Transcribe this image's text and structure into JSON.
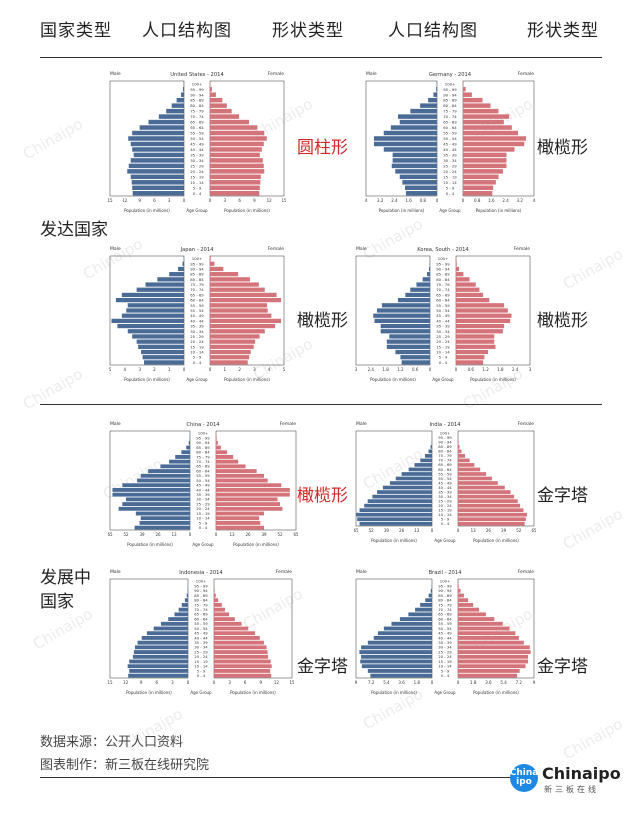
{
  "header": {
    "col1": "国家类型",
    "col2": "人口结构图",
    "col3": "形状类型",
    "col4": "人口结构图",
    "col5": "形状类型"
  },
  "groups": {
    "developed": "发达国家",
    "developing_line1": "发展中",
    "developing_line2": "国家"
  },
  "shapes": {
    "us": "圆柱形",
    "germany": "橄榄形",
    "japan": "橄榄形",
    "korea": "橄榄形",
    "china": "橄榄形",
    "india": "金字塔",
    "indonesia": "金字塔",
    "brazil": "金字塔"
  },
  "colors": {
    "male": "#4a6b96",
    "female": "#d4737a",
    "highlight": "#d42626",
    "logo": "#1e88e5"
  },
  "footer": {
    "source": "数据来源：公开人口资料",
    "maker": "图表制作：新三板在线研究院"
  },
  "logo": {
    "mark": "China ipo",
    "word": "Chinaipo",
    "sub": "新三板在线"
  },
  "chart_data": [
    {
      "type": "bar",
      "id": "us",
      "title": "United States - 2014",
      "left_label": "Male",
      "right_label": "Female",
      "center_label": "Age Group",
      "xlabel_left": "Population (in millions)",
      "xlabel_right": "Population (in millions)",
      "categories": [
        "0 - 4",
        "5 - 9",
        "10 - 14",
        "15 - 19",
        "20 - 24",
        "25 - 29",
        "30 - 34",
        "35 - 39",
        "40 - 44",
        "45 - 49",
        "50 - 54",
        "55 - 59",
        "60 - 64",
        "65 - 69",
        "70 - 74",
        "75 - 79",
        "80 - 84",
        "85 - 89",
        "90 - 94",
        "95 - 99",
        "100+"
      ],
      "male": [
        10.4,
        10.5,
        10.6,
        10.8,
        11.5,
        11.2,
        10.8,
        10.2,
        10.5,
        10.8,
        11.3,
        10.5,
        9.0,
        7.2,
        5.1,
        3.6,
        2.5,
        1.5,
        0.6,
        0.2,
        0.05
      ],
      "female": [
        10.0,
        10.1,
        10.2,
        10.3,
        11.0,
        10.9,
        10.7,
        10.1,
        10.5,
        10.9,
        11.5,
        11.0,
        9.6,
        7.9,
        5.9,
        4.4,
        3.4,
        2.5,
        1.2,
        0.4,
        0.1
      ],
      "ticks": [
        "15",
        "12",
        "9",
        "6",
        "3",
        "0",
        "0",
        "3",
        "6",
        "9",
        "12",
        "15"
      ],
      "xlim": 15
    },
    {
      "type": "bar",
      "id": "germany",
      "title": "Germany - 2014",
      "left_label": "Male",
      "right_label": "Female",
      "center_label": "Age Group",
      "xlabel_left": "Population (in millions)",
      "xlabel_right": "Population (in millions)",
      "categories": [
        "0 - 4",
        "5 - 9",
        "10 - 14",
        "15 - 19",
        "20 - 24",
        "25 - 29",
        "30 - 34",
        "35 - 39",
        "40 - 44",
        "45 - 49",
        "50 - 54",
        "55 - 59",
        "60 - 64",
        "65 - 69",
        "70 - 74",
        "75 - 79",
        "80 - 84",
        "85 - 89",
        "90 - 94",
        "95 - 99",
        "100+"
      ],
      "male": [
        1.75,
        1.8,
        1.95,
        2.1,
        2.35,
        2.55,
        2.5,
        2.5,
        3.0,
        3.55,
        3.55,
        3.0,
        2.6,
        2.1,
        2.2,
        1.5,
        0.95,
        0.5,
        0.2,
        0.05,
        0.01
      ],
      "female": [
        1.65,
        1.7,
        1.85,
        2.0,
        2.25,
        2.45,
        2.45,
        2.45,
        2.9,
        3.45,
        3.55,
        3.1,
        2.75,
        2.3,
        2.6,
        2.0,
        1.55,
        1.1,
        0.5,
        0.15,
        0.02
      ],
      "ticks": [
        "4",
        "3.2",
        "2.4",
        "1.6",
        "0.8",
        "0",
        "0",
        "0.8",
        "1.6",
        "2.4",
        "3.2",
        "4"
      ],
      "xlim": 4
    },
    {
      "type": "bar",
      "id": "japan",
      "title": "Japan - 2014",
      "left_label": "Male",
      "right_label": "Female",
      "center_label": "Age Group",
      "xlabel_left": "Population (in millions)",
      "xlabel_right": "Population (in millions)",
      "categories": [
        "0 - 4",
        "5 - 9",
        "10 - 14",
        "15 - 19",
        "20 - 24",
        "25 - 29",
        "30 - 34",
        "35 - 39",
        "40 - 44",
        "45 - 49",
        "50 - 54",
        "55 - 59",
        "60 - 64",
        "65 - 69",
        "70 - 74",
        "75 - 79",
        "80 - 84",
        "85 - 89",
        "90 - 94",
        "95 - 99",
        "100+"
      ],
      "male": [
        2.7,
        2.8,
        2.9,
        3.1,
        3.2,
        3.5,
        3.8,
        4.5,
        4.9,
        4.2,
        3.9,
        3.8,
        4.6,
        4.2,
        3.2,
        2.6,
        1.8,
        1.0,
        0.4,
        0.1,
        0.02
      ],
      "female": [
        2.55,
        2.65,
        2.75,
        2.95,
        3.05,
        3.35,
        3.7,
        4.4,
        4.8,
        4.15,
        3.9,
        3.85,
        4.8,
        4.5,
        3.7,
        3.3,
        2.7,
        1.9,
        0.9,
        0.3,
        0.05
      ],
      "ticks": [
        "5",
        "4",
        "3",
        "2",
        "1",
        "0",
        "0",
        "1",
        "2",
        "3",
        "4",
        "5"
      ],
      "xlim": 5
    },
    {
      "type": "bar",
      "id": "korea",
      "title": "Korea, South - 2014",
      "left_label": "Male",
      "right_label": "Female",
      "center_label": "Age Group",
      "xlabel_left": "Population (in millions)",
      "xlabel_right": "Population (in millions)",
      "categories": [
        "0 - 4",
        "5 - 9",
        "10 - 14",
        "15 - 19",
        "20 - 24",
        "25 - 29",
        "30 - 34",
        "35 - 39",
        "40 - 44",
        "45 - 49",
        "50 - 54",
        "55 - 59",
        "60 - 64",
        "65 - 69",
        "70 - 74",
        "75 - 79",
        "80 - 84",
        "85 - 89",
        "90 - 94",
        "95 - 99",
        "100+"
      ],
      "male": [
        1.15,
        1.2,
        1.4,
        1.75,
        1.75,
        1.65,
        2.0,
        2.0,
        2.25,
        2.3,
        2.15,
        1.95,
        1.3,
        1.0,
        0.8,
        0.55,
        0.3,
        0.12,
        0.04,
        0.01,
        0.005
      ],
      "female": [
        1.1,
        1.15,
        1.3,
        1.6,
        1.55,
        1.55,
        1.9,
        1.95,
        2.2,
        2.25,
        2.1,
        1.95,
        1.35,
        1.1,
        0.95,
        0.8,
        0.55,
        0.3,
        0.12,
        0.03,
        0.01
      ],
      "ticks": [
        "3",
        "2.4",
        "1.8",
        "1.2",
        "0.6",
        "0",
        "0",
        "0.6",
        "1.2",
        "1.8",
        "2.4",
        "3"
      ],
      "xlim": 3
    },
    {
      "type": "bar",
      "id": "china",
      "title": "China - 2014",
      "left_label": "Male",
      "right_label": "Female",
      "center_label": "Age Group",
      "xlabel_left": "Population (in millions)",
      "xlabel_right": "Population (in millions)",
      "categories": [
        "0 - 4",
        "5 - 9",
        "10 - 14",
        "15 - 19",
        "20 - 24",
        "25 - 29",
        "30 - 34",
        "35 - 39",
        "40 - 44",
        "45 - 49",
        "50 - 54",
        "55 - 59",
        "60 - 64",
        "65 - 69",
        "70 - 74",
        "75 - 79",
        "80 - 84",
        "85 - 89",
        "90 - 94",
        "95 - 99",
        "100+"
      ],
      "male": [
        45,
        41,
        40,
        44,
        58,
        55,
        52,
        63,
        63,
        55,
        43,
        40,
        34,
        24,
        17,
        12,
        7,
        3,
        1,
        0.3,
        0.05
      ],
      "female": [
        39,
        36,
        35,
        39,
        54,
        52,
        50,
        60,
        60,
        53,
        42,
        39,
        33,
        24,
        18,
        14,
        9,
        4,
        1.5,
        0.5,
        0.1
      ],
      "ticks": [
        "65",
        "52",
        "39",
        "26",
        "13",
        "0",
        "0",
        "13",
        "26",
        "39",
        "52",
        "65"
      ],
      "xlim": 65
    },
    {
      "type": "bar",
      "id": "india",
      "title": "India - 2014",
      "left_label": "Male",
      "right_label": "Female",
      "center_label": "Age Group",
      "xlabel_left": "Population (in millions)",
      "xlabel_right": "Population (in millions)",
      "categories": [
        "0 - 4",
        "5 - 9",
        "10 - 14",
        "15 - 19",
        "20 - 24",
        "25 - 29",
        "30 - 34",
        "35 - 39",
        "40 - 44",
        "45 - 49",
        "50 - 54",
        "55 - 59",
        "60 - 64",
        "65 - 69",
        "70 - 74",
        "75 - 79",
        "80 - 84",
        "85 - 89",
        "90 - 94",
        "95 - 99",
        "100+"
      ],
      "male": [
        62,
        64,
        65,
        62,
        58,
        55,
        51,
        47,
        42,
        36,
        31,
        26,
        20,
        15,
        10,
        6,
        3,
        1.2,
        0.4,
        0.1,
        0.02
      ],
      "female": [
        57,
        58,
        59,
        56,
        53,
        51,
        48,
        45,
        40,
        34,
        29,
        24,
        19,
        14,
        10,
        6,
        3,
        1.3,
        0.5,
        0.1,
        0.02
      ],
      "ticks": [
        "65",
        "52",
        "39",
        "26",
        "13",
        "0",
        "0",
        "13",
        "26",
        "39",
        "52",
        "65"
      ],
      "xlim": 65
    },
    {
      "type": "bar",
      "id": "indonesia",
      "title": "Indonesia - 2014",
      "left_label": "Male",
      "right_label": "Female",
      "center_label": "Age Group",
      "xlabel_left": "Population (in millions)",
      "xlabel_right": "Population (in millions)",
      "categories": [
        "0 - 4",
        "5 - 9",
        "10 - 14",
        "15 - 19",
        "20 - 24",
        "25 - 29",
        "30 - 34",
        "35 - 39",
        "40 - 44",
        "45 - 49",
        "50 - 54",
        "55 - 59",
        "60 - 64",
        "65 - 69",
        "70 - 74",
        "75 - 79",
        "80 - 84",
        "85 - 89",
        "90 - 94",
        "95 - 99",
        "100+"
      ],
      "male": [
        11.5,
        11.3,
        11.6,
        11.3,
        10.6,
        10.4,
        10.2,
        9.7,
        8.9,
        7.9,
        6.6,
        5.2,
        3.8,
        2.6,
        1.8,
        1.2,
        0.6,
        0.25,
        0.08,
        0.02,
        0.005
      ],
      "female": [
        11.0,
        10.8,
        11.1,
        10.9,
        10.4,
        10.3,
        10.1,
        9.6,
        8.8,
        7.9,
        6.6,
        5.3,
        4.0,
        2.9,
        2.1,
        1.5,
        0.8,
        0.35,
        0.12,
        0.03,
        0.005
      ],
      "ticks": [
        "15",
        "12",
        "9",
        "6",
        "3",
        "0",
        "0",
        "3",
        "6",
        "9",
        "12",
        "15"
      ],
      "xlim": 15
    },
    {
      "type": "bar",
      "id": "brazil",
      "title": "Brazil - 2014",
      "left_label": "Male",
      "right_label": "Female",
      "center_label": "Age Group",
      "xlabel_left": "Population (in millions)",
      "xlabel_right": "Population (in millions)",
      "categories": [
        "0 - 4",
        "5 - 9",
        "10 - 14",
        "15 - 19",
        "20 - 24",
        "25 - 29",
        "30 - 34",
        "35 - 39",
        "40 - 44",
        "45 - 49",
        "50 - 54",
        "55 - 59",
        "60 - 64",
        "65 - 69",
        "70 - 74",
        "75 - 79",
        "80 - 84",
        "85 - 89",
        "90 - 94",
        "95 - 99",
        "100+"
      ],
      "male": [
        7.3,
        7.6,
        8.3,
        8.5,
        8.4,
        8.6,
        8.4,
        7.6,
        6.9,
        6.4,
        5.7,
        4.8,
        3.8,
        2.8,
        2.0,
        1.4,
        0.8,
        0.4,
        0.15,
        0.04,
        0.01
      ],
      "female": [
        7.0,
        7.3,
        8.0,
        8.3,
        8.3,
        8.6,
        8.5,
        7.8,
        7.2,
        6.8,
        6.1,
        5.3,
        4.3,
        3.3,
        2.5,
        1.8,
        1.2,
        0.7,
        0.3,
        0.08,
        0.02
      ],
      "ticks": [
        "9",
        "7.2",
        "5.4",
        "3.6",
        "1.8",
        "0",
        "0",
        "1.8",
        "3.6",
        "5.4",
        "7.2",
        "9"
      ],
      "xlim": 9
    }
  ]
}
